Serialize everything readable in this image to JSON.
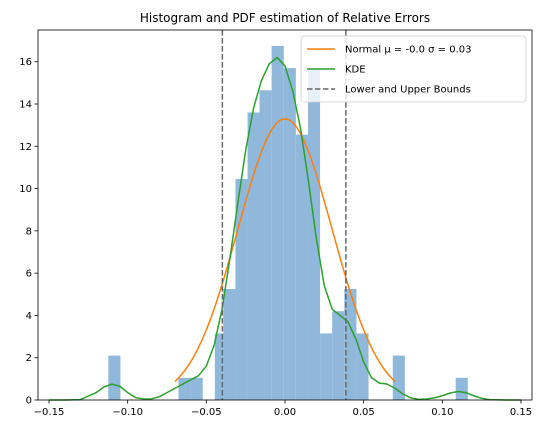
{
  "chart_data": {
    "type": "histogram",
    "title": "Histogram and PDF estimation of Relative Errors",
    "xlabel": "",
    "ylabel": "",
    "xlim": [
      -0.157,
      0.157
    ],
    "ylim": [
      0,
      17.5
    ],
    "xticks": [
      -0.15,
      -0.1,
      -0.05,
      0.0,
      0.05,
      0.1,
      0.15
    ],
    "xtick_labels": [
      "−0.15",
      "−0.10",
      "−0.05",
      "0.00",
      "0.05",
      "0.10",
      "0.15"
    ],
    "yticks": [
      0,
      2,
      4,
      6,
      8,
      10,
      12,
      14,
      16
    ],
    "ytick_labels": [
      "0",
      "2",
      "4",
      "6",
      "8",
      "10",
      "12",
      "14",
      "16"
    ],
    "grid": false,
    "legend_position": "top-right",
    "histogram": {
      "color": "#8fb8db",
      "bins": [
        {
          "x0": -0.1123,
          "x1": -0.1046,
          "value": 2.1
        },
        {
          "x0": -0.0677,
          "x1": -0.06,
          "value": 1.05
        },
        {
          "x0": -0.06,
          "x1": -0.0523,
          "value": 1.05
        },
        {
          "x0": -0.0446,
          "x1": -0.0392,
          "value": 3.15
        },
        {
          "x0": -0.0392,
          "x1": -0.0315,
          "value": 5.25
        },
        {
          "x0": -0.0315,
          "x1": -0.0238,
          "value": 10.45
        },
        {
          "x0": -0.0238,
          "x1": -0.0162,
          "value": 13.6
        },
        {
          "x0": -0.0162,
          "x1": -0.0085,
          "value": 14.65
        },
        {
          "x0": -0.0085,
          "x1": -0.0008,
          "value": 16.75
        },
        {
          "x0": -0.0008,
          "x1": 0.0069,
          "value": 15.7
        },
        {
          "x0": 0.0069,
          "x1": 0.0146,
          "value": 12.55
        },
        {
          "x0": 0.0146,
          "x1": 0.0223,
          "value": 15.7
        },
        {
          "x0": 0.0223,
          "x1": 0.03,
          "value": 3.15
        },
        {
          "x0": 0.03,
          "x1": 0.0377,
          "value": 4.2
        },
        {
          "x0": 0.0377,
          "x1": 0.0454,
          "value": 5.25
        },
        {
          "x0": 0.0454,
          "x1": 0.0531,
          "value": 3.15
        },
        {
          "x0": 0.0685,
          "x1": 0.0762,
          "value": 2.1
        },
        {
          "x0": 0.1085,
          "x1": 0.1162,
          "value": 1.05
        }
      ]
    },
    "series": [
      {
        "name": "Normal μ = -0.0 σ = 0.03",
        "color": "#ff7f0e",
        "x_range": [
          -0.07,
          0.07
        ],
        "mu": 0.0,
        "sigma": 0.03
      },
      {
        "name": "KDE",
        "color": "#2ca02c",
        "x": [
          -0.15,
          -0.14,
          -0.13,
          -0.12,
          -0.115,
          -0.11,
          -0.105,
          -0.1,
          -0.095,
          -0.09,
          -0.085,
          -0.08,
          -0.075,
          -0.07,
          -0.065,
          -0.06,
          -0.055,
          -0.05,
          -0.045,
          -0.04,
          -0.035,
          -0.03,
          -0.025,
          -0.02,
          -0.015,
          -0.01,
          -0.005,
          0.0,
          0.005,
          0.01,
          0.015,
          0.02,
          0.025,
          0.03,
          0.035,
          0.04,
          0.045,
          0.05,
          0.055,
          0.06,
          0.065,
          0.07,
          0.075,
          0.08,
          0.085,
          0.09,
          0.095,
          0.1,
          0.105,
          0.11,
          0.115,
          0.12,
          0.125,
          0.13,
          0.14,
          0.15
        ],
        "y": [
          0.0,
          0.0,
          0.02,
          0.35,
          0.62,
          0.75,
          0.65,
          0.35,
          0.12,
          0.05,
          0.05,
          0.15,
          0.35,
          0.55,
          0.75,
          0.95,
          1.15,
          1.6,
          2.6,
          4.3,
          6.7,
          9.3,
          11.8,
          13.8,
          15.1,
          15.9,
          16.2,
          15.8,
          14.6,
          12.8,
          10.3,
          7.6,
          5.4,
          4.3,
          4.0,
          3.7,
          2.9,
          1.8,
          1.05,
          0.8,
          0.75,
          0.55,
          0.28,
          0.1,
          0.03,
          0.05,
          0.1,
          0.2,
          0.33,
          0.4,
          0.35,
          0.2,
          0.08,
          0.02,
          0.0,
          0.0
        ]
      },
      {
        "name": "Lower and Upper Bounds",
        "color": "#666666",
        "style": "dashed",
        "x_values": [
          -0.0398,
          0.0387
        ]
      }
    ]
  }
}
